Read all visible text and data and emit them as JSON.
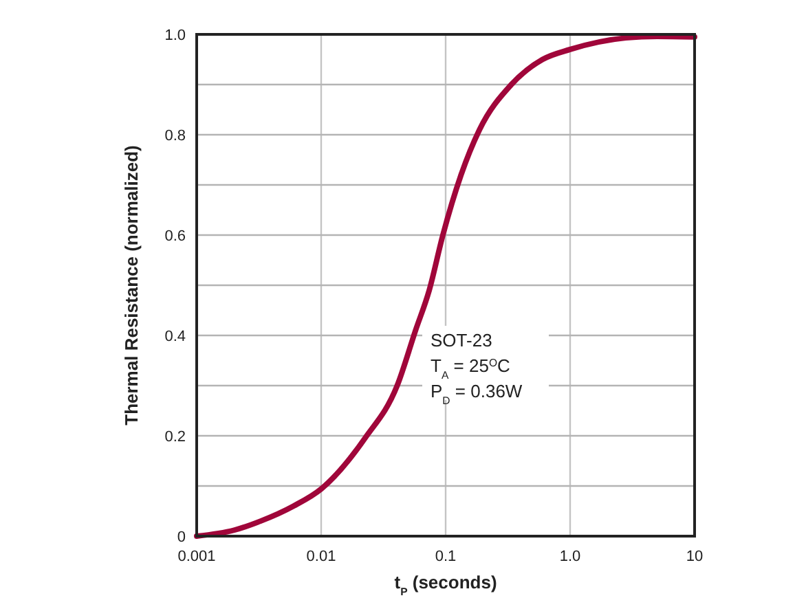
{
  "chart_data": {
    "type": "line",
    "xlabel": "t$_{P}$ (seconds)",
    "ylabel": "Thermal Resistance (normalized)",
    "log": "x",
    "xlim": [
      0.001,
      10
    ],
    "ylim": [
      0,
      1
    ],
    "xticks": [
      0.001,
      0.01,
      0.1,
      {
        "value": 1,
        "label": "1.0"
      },
      10
    ],
    "yticks": [
      0,
      {
        "value": 0.1,
        "label": null
      },
      0.2,
      {
        "value": 0.3,
        "label": null
      },
      0.4,
      {
        "value": 0.5,
        "label": null
      },
      0.6,
      {
        "value": 0.7,
        "label": null
      },
      0.8,
      {
        "value": 0.9,
        "label": null
      },
      {
        "value": 1,
        "label": "1.0"
      }
    ],
    "grid": true,
    "marker": "none",
    "line_style": "solid",
    "series": [
      {
        "color": "#a0063a",
        "x": [
          0.001,
          0.002,
          0.00326,
          0.006,
          0.01,
          0.0226,
          0.0408,
          0.0573,
          0.0738,
          0.095,
          0.133,
          0.187,
          0.337,
          0.6,
          1,
          2.8,
          5,
          10
        ],
        "values": [
          0,
          0.012,
          0.03,
          0.06,
          0.094,
          0.196,
          0.3,
          0.41,
          0.49,
          0.6,
          0.72,
          0.81,
          0.9,
          0.95,
          0.97,
          0.993,
          0.996,
          0.995
        ]
      }
    ],
    "annotations": [
      "SOT-23",
      "T$_{A}$ = 25$^{O}$C",
      "P$_{D}$ = 0.36W"
    ]
  }
}
